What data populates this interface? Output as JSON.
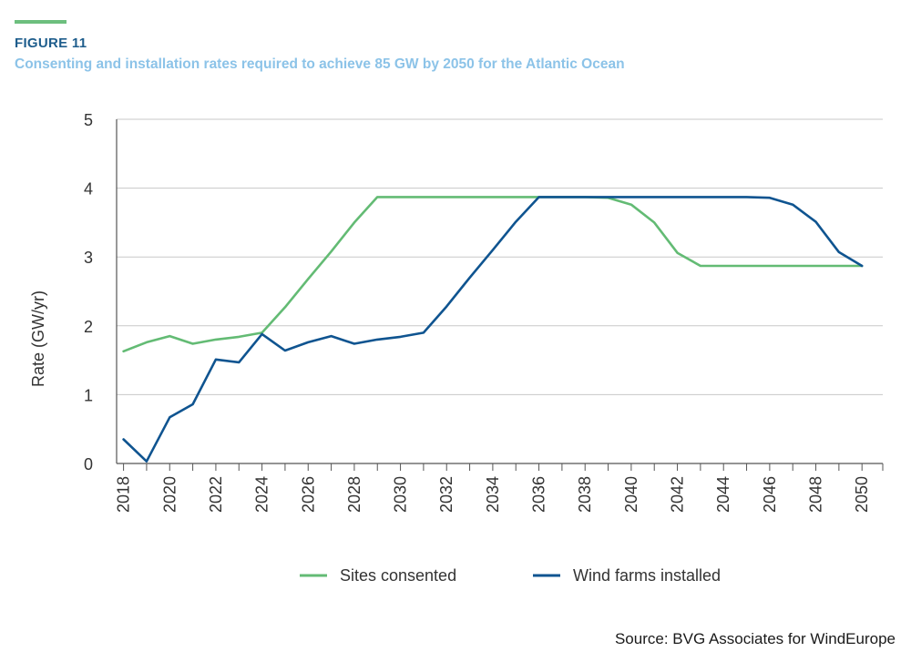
{
  "header": {
    "figure_label": "FIGURE 11",
    "title": "Consenting and installation rates required to achieve 85 GW by 2050 for the Atlantic Ocean"
  },
  "footer": {
    "source": "Source: BVG Associates for WindEurope"
  },
  "colors": {
    "accent": "#6dbf7e",
    "sites_consented": "#63bb74",
    "wind_farms_installed": "#0f5490",
    "grid": "#c8c8c8"
  },
  "chart_data": {
    "type": "line",
    "ylabel": "Rate (GW/yr)",
    "xlabel": "",
    "ylim": [
      0,
      5
    ],
    "yticks": [
      0,
      1,
      2,
      3,
      4,
      5
    ],
    "xlim": [
      2017.7,
      2050.9
    ],
    "xticks": [
      2018,
      2020,
      2022,
      2024,
      2026,
      2028,
      2030,
      2032,
      2034,
      2036,
      2038,
      2040,
      2042,
      2044,
      2046,
      2048,
      2050
    ],
    "x": [
      2018,
      2019,
      2020,
      2021,
      2022,
      2023,
      2024,
      2025,
      2026,
      2027,
      2028,
      2029,
      2030,
      2031,
      2032,
      2033,
      2034,
      2035,
      2036,
      2037,
      2038,
      2039,
      2040,
      2041,
      2042,
      2043,
      2044,
      2045,
      2046,
      2047,
      2048,
      2049,
      2050
    ],
    "grid": true,
    "legend": "bottom-center",
    "series": [
      {
        "name": "Sites consented",
        "values": [
          1.63,
          1.76,
          1.85,
          1.74,
          1.8,
          1.84,
          1.9,
          2.27,
          2.68,
          3.08,
          3.5,
          3.87,
          3.87,
          3.87,
          3.87,
          3.87,
          3.87,
          3.87,
          3.87,
          3.87,
          3.87,
          3.86,
          3.76,
          3.5,
          3.06,
          2.87,
          2.87,
          2.87,
          2.87,
          2.87,
          2.87,
          2.87,
          2.87
        ]
      },
      {
        "name": "Wind farms installed",
        "values": [
          0.35,
          0.03,
          0.67,
          0.86,
          1.51,
          1.47,
          1.88,
          1.64,
          1.76,
          1.85,
          1.74,
          1.8,
          1.84,
          1.9,
          2.28,
          2.7,
          3.1,
          3.51,
          3.87,
          3.87,
          3.87,
          3.87,
          3.87,
          3.87,
          3.87,
          3.87,
          3.87,
          3.87,
          3.86,
          3.76,
          3.51,
          3.07,
          2.87
        ]
      }
    ]
  }
}
